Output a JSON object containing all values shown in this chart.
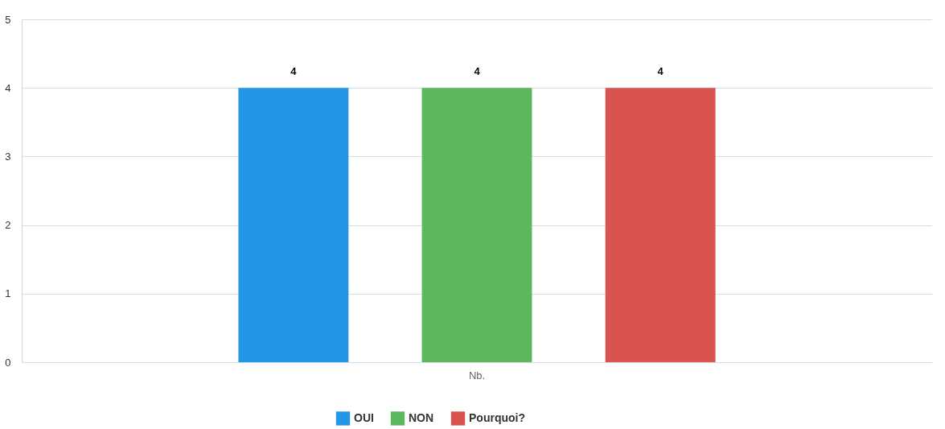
{
  "chart_data": {
    "type": "bar",
    "categories": [
      "Nb."
    ],
    "series": [
      {
        "name": "OUI",
        "color": "#2397e6",
        "values": [
          4
        ]
      },
      {
        "name": "NON",
        "color": "#5cb85c",
        "values": [
          4
        ]
      },
      {
        "name": "Pourquoi?",
        "color": "#d9534f",
        "values": [
          4
        ]
      }
    ],
    "ylim": [
      0,
      5
    ],
    "yticks": [
      0,
      1,
      2,
      3,
      4,
      5
    ],
    "grid": true,
    "legend": "bottom",
    "data_labels": true
  }
}
